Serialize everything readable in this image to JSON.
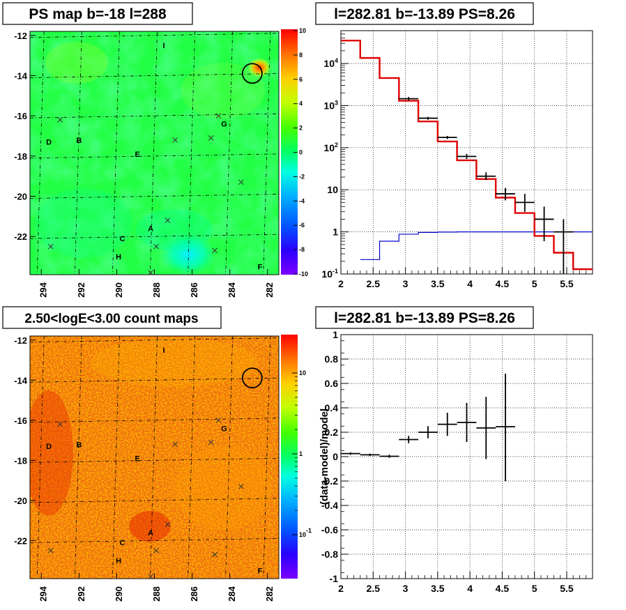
{
  "panels": [
    {
      "id": "ps-map",
      "title": "PS map b=-18 l=288",
      "type": "heatmap",
      "x_ticks": [
        "294",
        "292",
        "290",
        "288",
        "286",
        "284",
        "282"
      ],
      "y_ticks": [
        "-12",
        "-14",
        "-16",
        "-18",
        "-20",
        "-22"
      ],
      "colorbar_ticks": [
        "10",
        "8",
        "6",
        "4",
        "2",
        "0",
        "-2",
        "-4",
        "-6",
        "-8",
        "-10"
      ],
      "labels": [
        {
          "text": "I",
          "l": 287.5,
          "b": -12.5
        },
        {
          "text": "G",
          "l": 284.3,
          "b": -16.4
        },
        {
          "text": "D",
          "l": 293.6,
          "b": -17.3
        },
        {
          "text": "B",
          "l": 292.0,
          "b": -17.2
        },
        {
          "text": "E",
          "l": 288.9,
          "b": -17.9
        },
        {
          "text": "A",
          "l": 288.2,
          "b": -21.6
        },
        {
          "text": "C",
          "l": 289.7,
          "b": -22.1
        },
        {
          "text": "H",
          "l": 289.9,
          "b": -23.0
        },
        {
          "text": "F",
          "l": 282.4,
          "b": -23.5
        }
      ],
      "crosses": [
        {
          "l": 293.0,
          "b": -16.2
        },
        {
          "l": 286.9,
          "b": -17.2
        },
        {
          "l": 285.0,
          "b": -17.1
        },
        {
          "l": 284.6,
          "b": -16.0
        },
        {
          "l": 283.4,
          "b": -19.3
        },
        {
          "l": 287.3,
          "b": -21.2
        },
        {
          "l": 293.5,
          "b": -22.5
        },
        {
          "l": 287.9,
          "b": -22.5
        },
        {
          "l": 284.8,
          "b": -22.7
        },
        {
          "l": 288.2,
          "b": -23.8
        }
      ],
      "circle": {
        "l": 282.81,
        "b": -13.89
      }
    },
    {
      "id": "spectrum",
      "title": "l=282.81 b=-13.89 PS=8.26",
      "type": "line",
      "x_ticks": [
        "2",
        "2.5",
        "3",
        "3.5",
        "4",
        "4.5",
        "5",
        "5.5"
      ],
      "y_ticks": [
        "10^4",
        "10^3",
        "10^2",
        "10",
        "1",
        "10^-1"
      ],
      "xlim": [
        2,
        5.9
      ],
      "ylim": [
        0.1,
        60000
      ],
      "yscale": "log"
    },
    {
      "id": "count-map",
      "title": "2.50<logE<3.00 count maps",
      "type": "heatmap",
      "x_ticks": [
        "294",
        "292",
        "290",
        "288",
        "286",
        "284",
        "282"
      ],
      "y_ticks": [
        "-12",
        "-14",
        "-16",
        "-18",
        "-20",
        "-22"
      ],
      "colorbar_ticks": [
        "10",
        "1",
        "10^-1"
      ]
    },
    {
      "id": "residual",
      "title": "l=282.81 b=-13.89 PS=8.26",
      "type": "scatter",
      "ylabel": "(data-model)/model",
      "x_ticks": [
        "2",
        "2.5",
        "3",
        "3.5",
        "4",
        "4.5",
        "5",
        "5.5"
      ],
      "y_ticks": [
        "1",
        "0.8",
        "0.6",
        "0.4",
        "0.2",
        "0",
        "-0.2",
        "-0.4",
        "-0.6",
        "-0.8",
        "-1"
      ],
      "xlim": [
        2,
        5.9
      ],
      "ylim": [
        -1,
        1
      ]
    }
  ],
  "chart_data": [
    {
      "type": "line",
      "title": "l=282.81 b=-13.89 PS=8.26",
      "yscale": "log",
      "xlim": [
        2,
        5.9
      ],
      "ylim": [
        0.1,
        60000
      ],
      "series": [
        {
          "role": "model",
          "color": "#e00000",
          "edges": [
            2.0,
            2.3,
            2.6,
            2.9,
            3.2,
            3.5,
            3.8,
            4.1,
            4.4,
            4.7,
            5.0,
            5.3,
            5.6,
            5.9
          ],
          "values": [
            35000,
            13500,
            4500,
            1300,
            420,
            140,
            50,
            18,
            6.5,
            2.8,
            0.8,
            0.32,
            0.13
          ]
        },
        {
          "role": "background",
          "color": "#0000cc",
          "edges": [
            2.3,
            2.6,
            2.9,
            3.2,
            3.5,
            3.8,
            4.1,
            4.4,
            4.7,
            5.0,
            5.3,
            5.6,
            5.9
          ],
          "values": [
            0.22,
            0.6,
            0.88,
            0.97,
            0.99,
            1.0,
            1.0,
            1.0,
            1.0,
            1.0,
            1.0,
            1.0
          ]
        },
        {
          "role": "data",
          "color": "#000000",
          "points": [
            {
              "x": 3.05,
              "y": 1450,
              "xerr": 0.15,
              "ylo": 1300,
              "yhi": 1600
            },
            {
              "x": 3.35,
              "y": 500,
              "xerr": 0.15,
              "ylo": 460,
              "yhi": 540
            },
            {
              "x": 3.65,
              "y": 175,
              "xerr": 0.15,
              "ylo": 160,
              "yhi": 190
            },
            {
              "x": 3.95,
              "y": 62,
              "xerr": 0.15,
              "ylo": 54,
              "yhi": 71
            },
            {
              "x": 4.25,
              "y": 21,
              "xerr": 0.15,
              "ylo": 17,
              "yhi": 26
            },
            {
              "x": 4.55,
              "y": 8,
              "xerr": 0.15,
              "ylo": 5.6,
              "yhi": 11
            },
            {
              "x": 4.85,
              "y": 5,
              "xerr": 0.15,
              "ylo": 3,
              "yhi": 8
            },
            {
              "x": 5.15,
              "y": 2,
              "xerr": 0.15,
              "ylo": 0.6,
              "yhi": 4
            },
            {
              "x": 5.45,
              "y": 1,
              "xerr": 0.15,
              "ylo": 0.1,
              "yhi": 2
            }
          ]
        }
      ]
    },
    {
      "type": "scatter",
      "title": "l=282.81 b=-13.89 PS=8.26",
      "ylabel": "(data-model)/model",
      "xlim": [
        2,
        5.9
      ],
      "ylim": [
        -1,
        1
      ],
      "points": [
        {
          "x": 2.15,
          "y": 0.025,
          "xerr": 0.15,
          "ylo": 0.015,
          "yhi": 0.035
        },
        {
          "x": 2.45,
          "y": 0.015,
          "xerr": 0.15,
          "ylo": 0.005,
          "yhi": 0.025
        },
        {
          "x": 2.75,
          "y": 0.003,
          "xerr": 0.15,
          "ylo": -0.01,
          "yhi": 0.016
        },
        {
          "x": 3.05,
          "y": 0.14,
          "xerr": 0.15,
          "ylo": 0.11,
          "yhi": 0.17
        },
        {
          "x": 3.35,
          "y": 0.2,
          "xerr": 0.15,
          "ylo": 0.15,
          "yhi": 0.25
        },
        {
          "x": 3.65,
          "y": 0.265,
          "xerr": 0.15,
          "ylo": 0.17,
          "yhi": 0.36
        },
        {
          "x": 3.95,
          "y": 0.28,
          "xerr": 0.15,
          "ylo": 0.12,
          "yhi": 0.44
        },
        {
          "x": 4.25,
          "y": 0.235,
          "xerr": 0.15,
          "ylo": -0.02,
          "yhi": 0.49
        },
        {
          "x": 4.55,
          "y": 0.245,
          "xerr": 0.15,
          "ylo": -0.2,
          "yhi": 0.68
        }
      ]
    }
  ],
  "colors": {
    "model": "#e00000",
    "background": "#0000cc",
    "data": "#000000"
  }
}
